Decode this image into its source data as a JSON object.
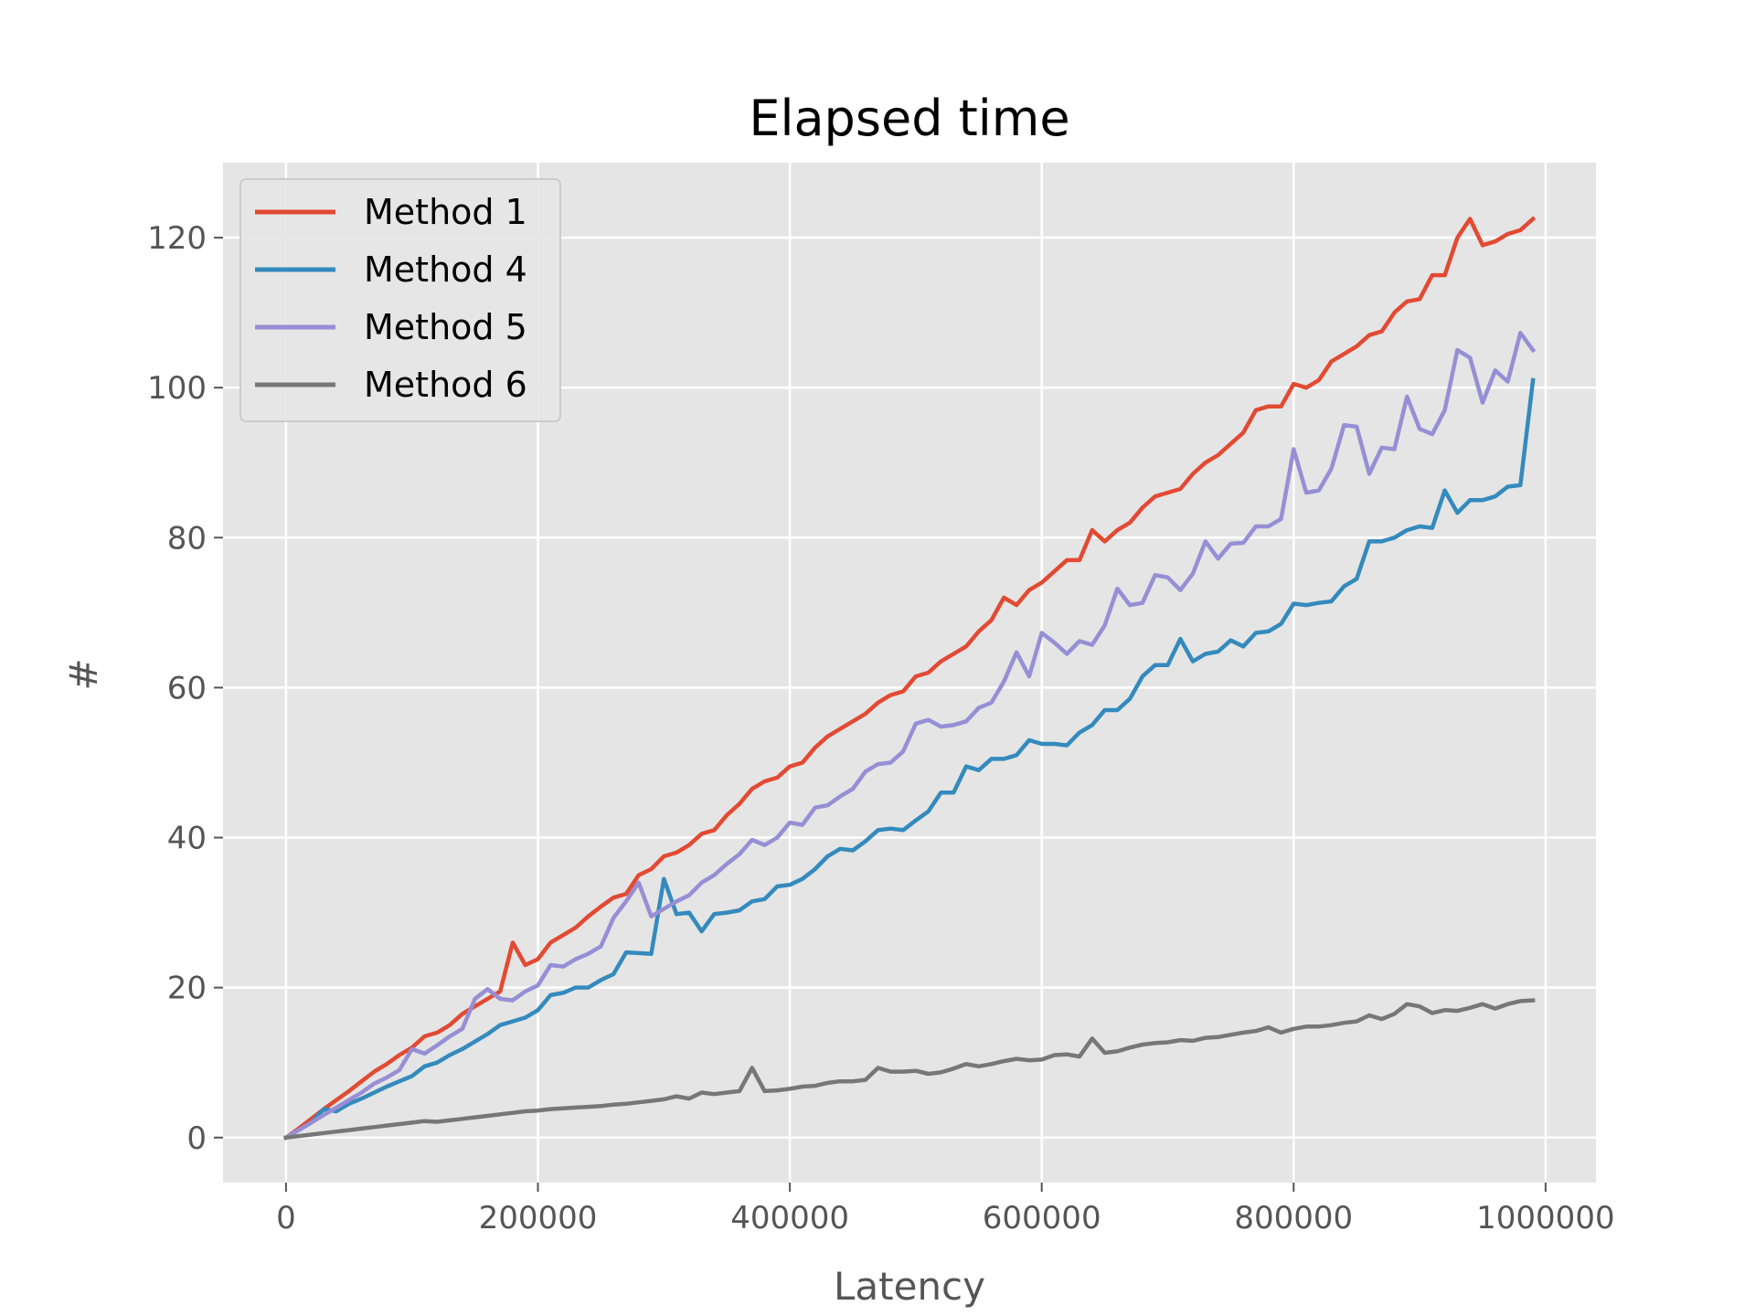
{
  "chart_data": {
    "type": "line",
    "title": "Elapsed time",
    "xlabel": "Latency",
    "ylabel": "#",
    "xlim": [
      -50000,
      1040000
    ],
    "ylim": [
      -6,
      130
    ],
    "xticks": [
      0,
      200000,
      400000,
      600000,
      800000,
      1000000
    ],
    "xtick_labels": [
      "0",
      "200000",
      "400000",
      "600000",
      "800000",
      "1000000"
    ],
    "yticks": [
      0,
      20,
      40,
      60,
      80,
      100,
      120
    ],
    "ytick_labels": [
      "0",
      "20",
      "40",
      "60",
      "80",
      "100",
      "120"
    ],
    "grid": true,
    "legend_position": "top-left",
    "background": "#e5e5e5",
    "x": [
      0,
      10000,
      20000,
      30000,
      40000,
      50000,
      60000,
      70000,
      80000,
      90000,
      100000,
      110000,
      120000,
      130000,
      140000,
      150000,
      160000,
      170000,
      180000,
      190000,
      200000,
      210000,
      220000,
      230000,
      240000,
      250000,
      260000,
      270000,
      280000,
      290000,
      300000,
      310000,
      320000,
      330000,
      340000,
      350000,
      360000,
      370000,
      380000,
      390000,
      400000,
      410000,
      420000,
      430000,
      440000,
      450000,
      460000,
      470000,
      480000,
      490000,
      500000,
      510000,
      520000,
      530000,
      540000,
      550000,
      560000,
      570000,
      580000,
      590000,
      600000,
      610000,
      620000,
      630000,
      640000,
      650000,
      660000,
      670000,
      680000,
      690000,
      700000,
      710000,
      720000,
      730000,
      740000,
      750000,
      760000,
      770000,
      780000,
      790000,
      800000,
      810000,
      820000,
      830000,
      840000,
      850000,
      860000,
      870000,
      880000,
      890000,
      900000,
      910000,
      920000,
      930000,
      940000,
      950000,
      960000,
      970000,
      980000,
      990000
    ],
    "series": [
      {
        "name": "Method 1",
        "color": "#E24A33",
        "values": [
          0,
          1.2,
          2.5,
          3.8,
          5.0,
          6.2,
          7.5,
          8.8,
          9.8,
          11.0,
          12.0,
          13.5,
          14.0,
          15.0,
          16.5,
          17.5,
          18.5,
          19.5,
          26.0,
          23.0,
          23.8,
          26.0,
          27.0,
          28.0,
          29.5,
          30.8,
          32.0,
          32.5,
          35.0,
          35.8,
          37.5,
          38.0,
          39.0,
          40.5,
          41.0,
          43.0,
          44.5,
          46.5,
          47.5,
          48.0,
          49.5,
          50.0,
          52.0,
          53.5,
          54.5,
          55.5,
          56.5,
          58.0,
          59.0,
          59.5,
          61.5,
          62.0,
          63.5,
          64.5,
          65.5,
          67.5,
          69.0,
          72.0,
          71.0,
          73.0,
          74.0,
          75.5,
          77.0,
          77.0,
          81.0,
          79.5,
          81.0,
          82.0,
          84.0,
          85.5,
          86.0,
          86.5,
          88.5,
          90.0,
          91.0,
          92.5,
          94.0,
          97.0,
          97.5,
          97.5,
          100.5,
          100.0,
          101.0,
          103.5,
          104.5,
          105.5,
          107.0,
          107.5,
          110.0,
          111.5,
          111.8,
          115.0,
          115.0,
          120.0,
          122.5,
          119.0,
          119.5,
          120.5,
          121.0,
          122.5
        ]
      },
      {
        "name": "Method 4",
        "color": "#348ABD",
        "values": [
          0,
          1.0,
          2.0,
          3.8,
          3.5,
          4.5,
          5.2,
          6.0,
          6.8,
          7.5,
          8.2,
          9.5,
          10.0,
          11.0,
          11.8,
          12.8,
          13.8,
          15.0,
          15.5,
          16.0,
          17.0,
          19.0,
          19.3,
          20.0,
          20.0,
          21.0,
          21.8,
          24.7,
          24.6,
          24.5,
          34.5,
          29.8,
          30.0,
          27.5,
          29.8,
          30.0,
          30.3,
          31.5,
          31.8,
          33.5,
          33.7,
          34.5,
          35.8,
          37.5,
          38.5,
          38.3,
          39.5,
          41.0,
          41.2,
          41.0,
          42.3,
          43.5,
          46.0,
          46.0,
          49.5,
          49.0,
          50.5,
          50.5,
          51.0,
          53.0,
          52.5,
          52.5,
          52.3,
          54.0,
          55.0,
          57.0,
          57.0,
          58.5,
          61.5,
          63.0,
          63.0,
          66.5,
          63.5,
          64.5,
          64.8,
          66.3,
          65.5,
          67.3,
          67.5,
          68.5,
          71.2,
          71.0,
          71.3,
          71.5,
          73.5,
          74.5,
          79.5,
          79.5,
          80.0,
          81.0,
          81.5,
          81.3,
          86.3,
          83.3,
          85.0,
          85.0,
          85.5,
          86.8,
          87.0,
          101.0
        ]
      },
      {
        "name": "Method 5",
        "color": "#988ED5",
        "values": [
          0,
          1.0,
          2.0,
          3.0,
          4.0,
          5.0,
          6.0,
          7.2,
          8.0,
          9.0,
          11.8,
          11.2,
          12.3,
          13.5,
          14.5,
          18.5,
          19.8,
          18.5,
          18.3,
          19.5,
          20.3,
          23.0,
          22.8,
          23.8,
          24.5,
          25.5,
          29.3,
          31.5,
          34.0,
          29.5,
          30.5,
          31.5,
          32.3,
          34.0,
          35.0,
          36.5,
          37.8,
          39.7,
          39.0,
          40.0,
          42.0,
          41.7,
          44.0,
          44.3,
          45.5,
          46.5,
          48.8,
          49.8,
          50.0,
          51.5,
          55.2,
          55.7,
          54.8,
          55.0,
          55.5,
          57.3,
          58.0,
          60.8,
          64.7,
          61.5,
          67.3,
          66.0,
          64.5,
          66.2,
          65.7,
          68.3,
          73.2,
          71.0,
          71.3,
          75.0,
          74.7,
          73.0,
          75.2,
          79.5,
          77.2,
          79.2,
          79.3,
          81.5,
          81.5,
          82.5,
          91.8,
          86.0,
          86.3,
          89.2,
          95.0,
          94.8,
          88.5,
          92.0,
          91.8,
          98.8,
          94.5,
          93.8,
          97.0,
          105.0,
          104.0,
          98.0,
          102.3,
          100.8,
          107.3,
          105.0
        ]
      },
      {
        "name": "Method 6",
        "color": "#777777",
        "values": [
          0,
          0.2,
          0.4,
          0.6,
          0.8,
          1.0,
          1.2,
          1.4,
          1.6,
          1.8,
          2.0,
          2.2,
          2.1,
          2.3,
          2.5,
          2.7,
          2.9,
          3.1,
          3.3,
          3.5,
          3.6,
          3.8,
          3.9,
          4.0,
          4.1,
          4.2,
          4.4,
          4.5,
          4.7,
          4.9,
          5.1,
          5.5,
          5.2,
          6.0,
          5.8,
          6.0,
          6.2,
          9.3,
          6.2,
          6.3,
          6.5,
          6.8,
          6.9,
          7.3,
          7.5,
          7.5,
          7.7,
          9.3,
          8.8,
          8.8,
          8.9,
          8.5,
          8.7,
          9.2,
          9.8,
          9.5,
          9.8,
          10.2,
          10.5,
          10.3,
          10.4,
          11.0,
          11.1,
          10.8,
          13.2,
          11.3,
          11.5,
          12.0,
          12.4,
          12.6,
          12.7,
          13.0,
          12.9,
          13.3,
          13.4,
          13.7,
          14.0,
          14.2,
          14.7,
          14.0,
          14.5,
          14.8,
          14.8,
          15.0,
          15.3,
          15.5,
          16.3,
          15.8,
          16.5,
          17.8,
          17.5,
          16.6,
          17.0,
          16.9,
          17.3,
          17.8,
          17.2,
          17.8,
          18.2,
          18.3
        ]
      }
    ]
  }
}
